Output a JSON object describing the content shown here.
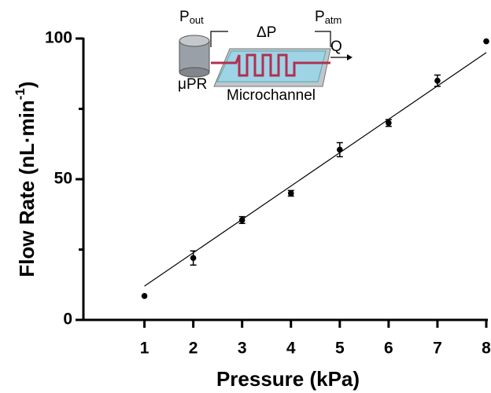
{
  "chart_data": {
    "type": "scatter",
    "x_label": "Pressure (kPa)",
    "y_label": "Flow Rate (nL·min",
    "y_label_sup": "-1",
    "y_label_end": ")",
    "x": [
      1,
      2,
      3,
      4,
      5,
      6,
      7,
      8
    ],
    "values": [
      8.5,
      22,
      35.5,
      45,
      60.5,
      70,
      85,
      99
    ],
    "errors": [
      null,
      2.5,
      1.2,
      1,
      2.5,
      1.2,
      2,
      null
    ],
    "color": "#000000",
    "fit": {
      "x": [
        1,
        8
      ],
      "values": [
        12,
        95
      ]
    },
    "xlim": [
      -0.25,
      8
    ],
    "xticks": [
      1,
      2,
      3,
      4,
      5,
      6,
      7,
      8
    ],
    "ylim": [
      0,
      100
    ],
    "yticks": [
      0,
      50,
      100
    ],
    "yminor_ticks": [
      25,
      75
    ]
  },
  "inset": {
    "p_out": "P",
    "p_out_sub": "out",
    "delta_p": "ΔP",
    "p_atm": "P",
    "p_atm_sub": "atm",
    "q": "Q",
    "regulator": "μPR",
    "channel": "Microchannel"
  }
}
